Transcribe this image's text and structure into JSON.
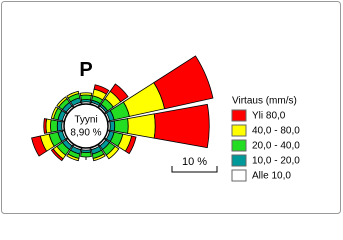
{
  "chart_data": {
    "type": "windrose",
    "categories": [
      "P",
      null,
      null,
      null,
      null,
      null,
      null,
      null,
      null,
      null,
      null,
      null,
      null,
      null,
      null,
      null
    ],
    "legend_title": "Virtaus (mm/s)",
    "series": [
      {
        "name": "Yli 80,0",
        "color": "#ff0000",
        "values": [
          0,
          1,
          2,
          11,
          12,
          1,
          0,
          0,
          0,
          0,
          0.5,
          2,
          0.5,
          0,
          0,
          0
        ]
      },
      {
        "name": "40,0 - 80,0",
        "color": "#ffff00",
        "values": [
          0.5,
          1.5,
          2,
          8,
          6,
          2,
          1,
          0.5,
          0,
          0.5,
          1,
          2,
          1,
          0.5,
          0.5,
          0.5
        ]
      },
      {
        "name": "20,0 - 40,0",
        "color": "#22dd22",
        "values": [
          1,
          1,
          1.5,
          3.5,
          3,
          2,
          1.5,
          1,
          1,
          1,
          1.5,
          2,
          1.5,
          1,
          1,
          1
        ]
      },
      {
        "name": "10,0 - 20,0",
        "color": "#009999",
        "values": [
          0.5,
          0.5,
          0.5,
          1,
          1,
          1,
          1,
          1,
          0.5,
          1,
          1,
          1,
          1,
          1,
          1,
          1
        ]
      },
      {
        "name": "Alle 10,0",
        "color": "#ffffff",
        "values": [
          0.5,
          0.5,
          0.5,
          0.5,
          0.5,
          0.5,
          0.5,
          0.5,
          0.5,
          0.5,
          0.5,
          0.5,
          0.5,
          0.5,
          0.5,
          0.5
        ]
      }
    ],
    "calm": {
      "label": "Tyyni",
      "value": 8.9,
      "value_label": "8,90 %"
    },
    "scale_bar": {
      "value": 10,
      "label": "10 %"
    }
  }
}
